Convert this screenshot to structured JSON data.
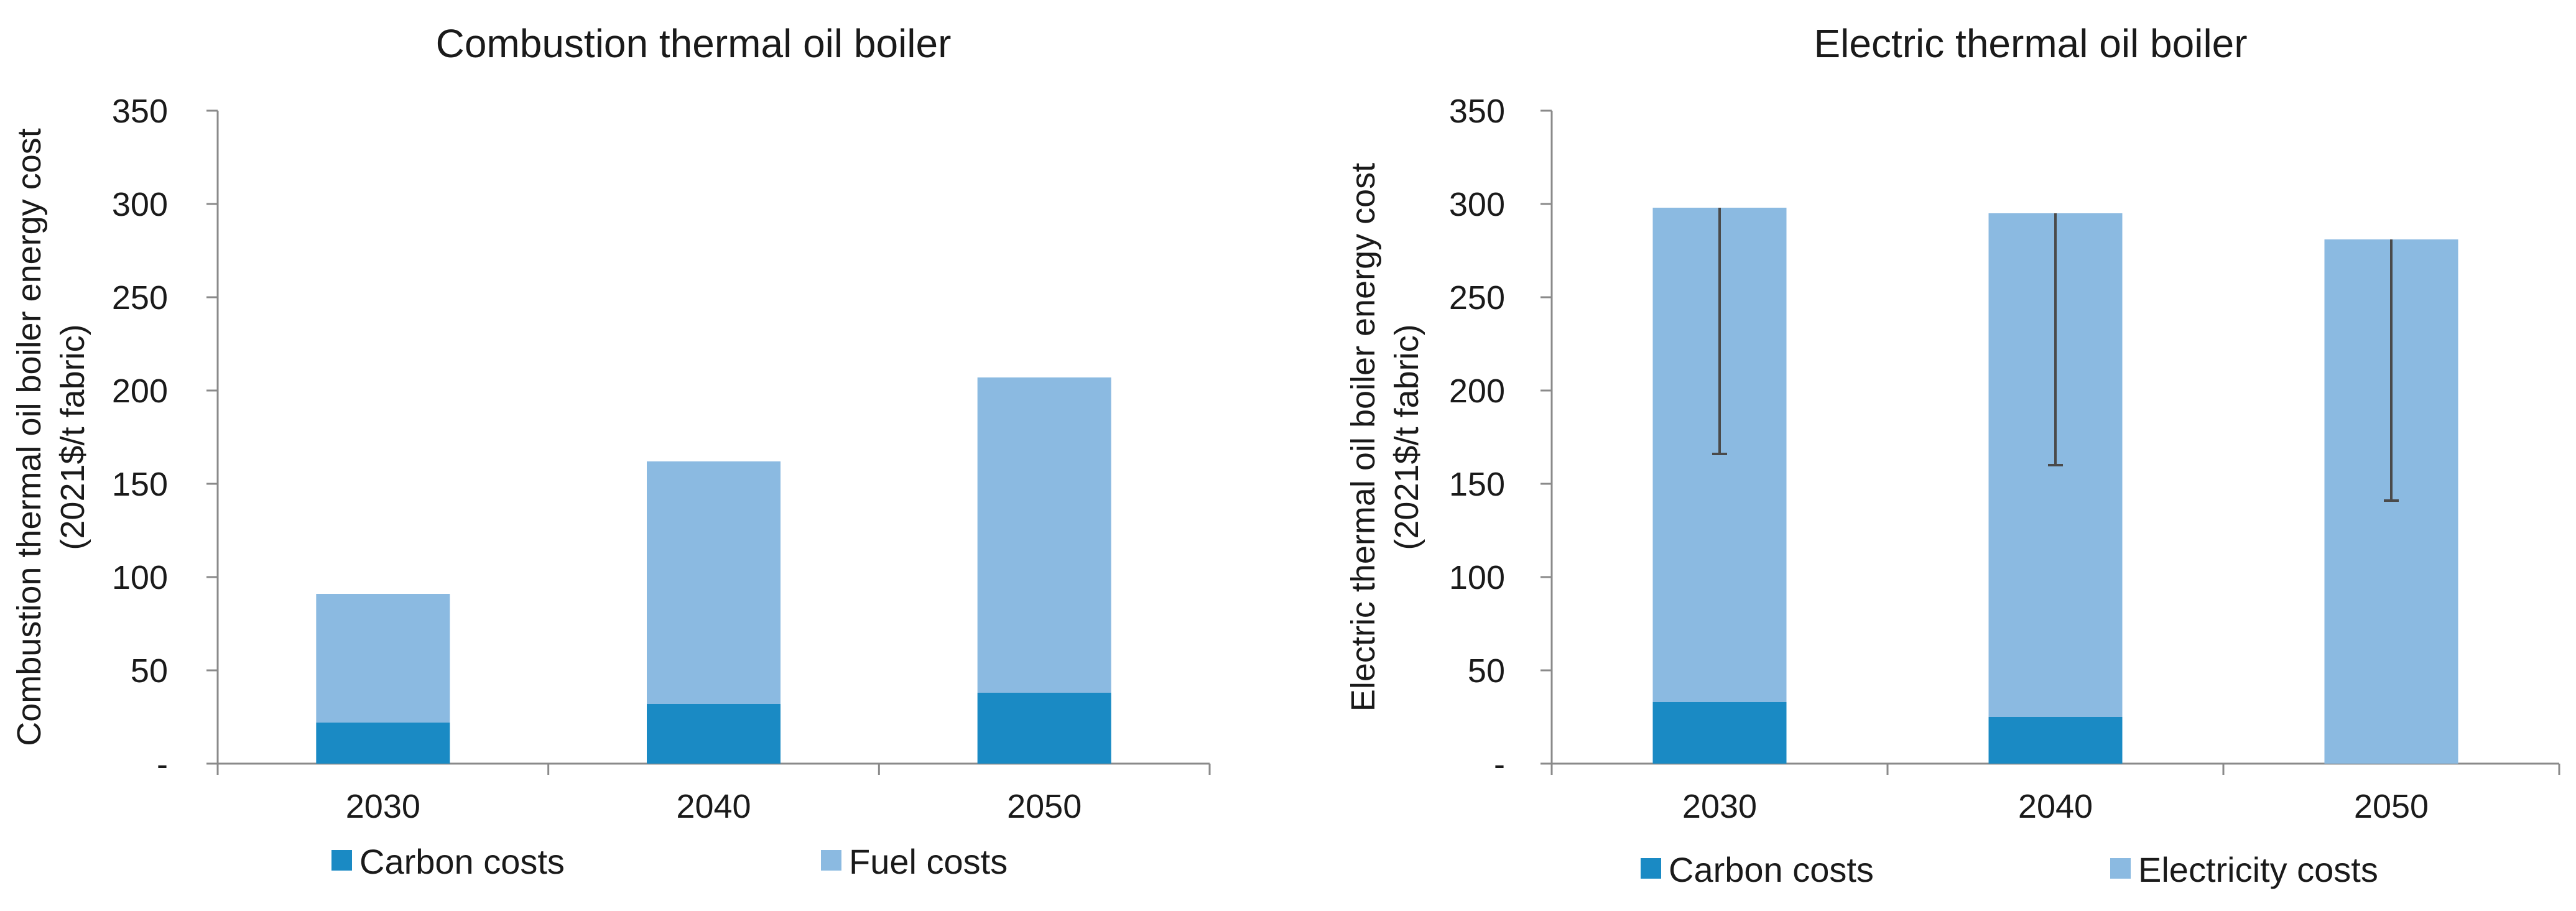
{
  "chart_data": [
    {
      "type": "bar",
      "stacked": true,
      "title": "Combustion thermal oil boiler",
      "ylabel_lines": [
        "Combustion thermal oil boiler energy cost",
        "(2021$/t fabric)"
      ],
      "xlabel": "",
      "categories": [
        "2030",
        "2040",
        "2050"
      ],
      "ylim": [
        0,
        350
      ],
      "yticks": [
        0,
        50,
        100,
        150,
        200,
        250,
        300,
        350
      ],
      "ytick_labels": [
        "-",
        "50",
        "100",
        "150",
        "200",
        "250",
        "300",
        "350"
      ],
      "series": [
        {
          "name": "Carbon costs",
          "color": "#1a8ac4",
          "values": [
            22,
            32,
            38
          ]
        },
        {
          "name": "Fuel costs",
          "color": "#8bbae1",
          "values": [
            69,
            130,
            169
          ]
        }
      ],
      "error_bars": [],
      "legend": "bottom"
    },
    {
      "type": "bar",
      "stacked": true,
      "title": "Electric thermal oil boiler",
      "ylabel_lines": [
        "Electric thermal oil boiler energy cost",
        "(2021$/t fabric)"
      ],
      "xlabel": "",
      "categories": [
        "2030",
        "2040",
        "2050"
      ],
      "ylim": [
        0,
        350
      ],
      "yticks": [
        0,
        50,
        100,
        150,
        200,
        250,
        300,
        350
      ],
      "ytick_labels": [
        "-",
        "50",
        "100",
        "150",
        "200",
        "250",
        "300",
        "350"
      ],
      "series": [
        {
          "name": "Carbon costs",
          "color": "#1a8ac4",
          "values": [
            33,
            25,
            0
          ]
        },
        {
          "name": "Electricity costs",
          "color": "#8bbae1",
          "values": [
            265,
            270,
            281
          ]
        }
      ],
      "error_bars": [
        {
          "category": "2030",
          "low": 166,
          "high": 298
        },
        {
          "category": "2040",
          "low": 160,
          "high": 295
        },
        {
          "category": "2050",
          "low": 141,
          "high": 281
        }
      ],
      "legend": "bottom"
    }
  ]
}
